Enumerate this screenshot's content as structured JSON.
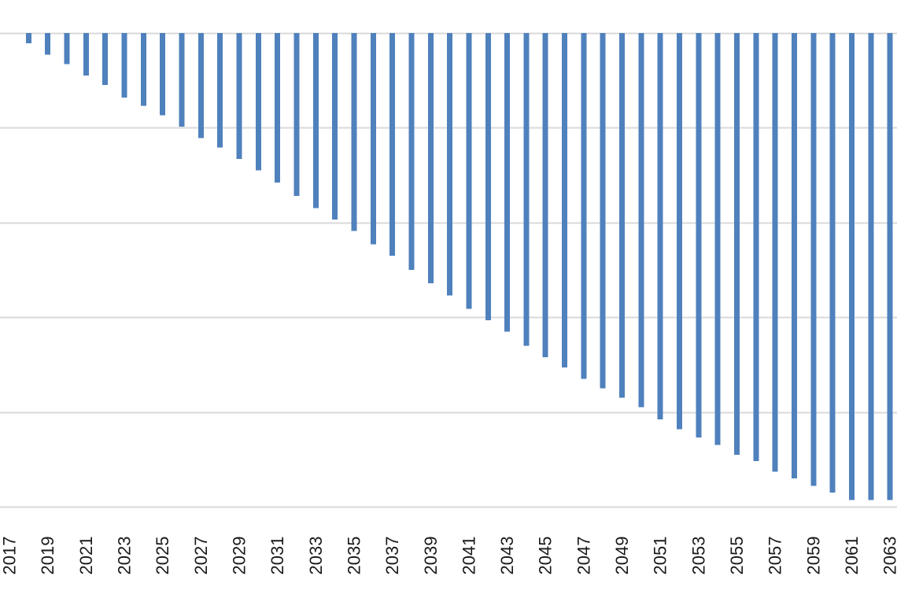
{
  "chart_data": {
    "type": "bar",
    "title": "",
    "xlabel": "",
    "ylabel": "",
    "bar_color": "#4f81bd",
    "grid_color": "#d9d9d9",
    "grid": true,
    "ylim": [
      -50,
      0
    ],
    "gridlines": [
      0,
      -10,
      -20,
      -30,
      -40,
      -50
    ],
    "categories": [
      "2017",
      "2018",
      "2019",
      "2020",
      "2021",
      "2022",
      "2023",
      "2024",
      "2025",
      "2026",
      "2027",
      "2028",
      "2029",
      "2030",
      "2031",
      "2032",
      "2033",
      "2034",
      "2035",
      "2036",
      "2037",
      "2038",
      "2039",
      "2040",
      "2041",
      "2042",
      "2043",
      "2044",
      "2045",
      "2046",
      "2047",
      "2048",
      "2049",
      "2050",
      "2051",
      "2052",
      "2053",
      "2054",
      "2055",
      "2056",
      "2057",
      "2058",
      "2059",
      "2060",
      "2061",
      "2062",
      "2063"
    ],
    "tick_labels": [
      "2017",
      "2019",
      "2021",
      "2023",
      "2025",
      "2027",
      "2029",
      "2031",
      "2033",
      "2035",
      "2037",
      "2039",
      "2041",
      "2043",
      "2045",
      "2047",
      "2049",
      "2051",
      "2053",
      "2055",
      "2057",
      "2059",
      "2061",
      "2063"
    ],
    "values": [
      0,
      -1.1,
      -2.3,
      -3.3,
      -4.5,
      -5.5,
      -6.8,
      -7.7,
      -8.7,
      -9.9,
      -11.1,
      -12.1,
      -13.3,
      -14.5,
      -15.8,
      -17.2,
      -18.5,
      -19.7,
      -20.9,
      -22.3,
      -23.5,
      -25.0,
      -26.4,
      -27.7,
      -29.1,
      -30.3,
      -31.5,
      -33.0,
      -34.2,
      -35.3,
      -36.5,
      -37.5,
      -38.5,
      -39.5,
      -40.8,
      -41.8,
      -42.7,
      -43.5,
      -44.5,
      -45.2,
      -46.3,
      -47.0,
      -47.8,
      -48.5,
      -49.3,
      -49.3,
      -49.3
    ]
  }
}
